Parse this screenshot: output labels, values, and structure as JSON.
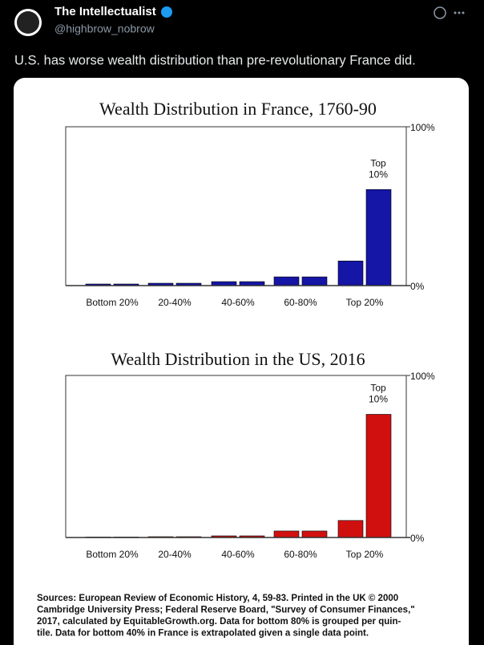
{
  "tweet": {
    "name": "The Intellectualist",
    "handle": "@highbrow_nobrow",
    "text": "U.S. has worse wealth distribution than pre-revolutionary France did."
  },
  "chart_data": [
    {
      "type": "bar",
      "title": "Wealth Distribution in France, 1760-90",
      "categories": [
        "Bottom 20%",
        "20-40%",
        "40-60%",
        "60-80%",
        "Top 20%"
      ],
      "values": [
        [
          1,
          1
        ],
        [
          1.5,
          1.5
        ],
        [
          2.5,
          2.5
        ],
        [
          5.5,
          5.5
        ],
        [
          15.5,
          60.5
        ]
      ],
      "color": "#1515a6",
      "ylim": [
        0,
        100
      ],
      "yticks": [
        {
          "value": 0,
          "label": "0%"
        },
        {
          "value": 100,
          "label": "100%"
        }
      ],
      "annotation": [
        "Top",
        "10%"
      ]
    },
    {
      "type": "bar",
      "title": "Wealth Distribution in the US, 2016",
      "categories": [
        "Bottom 20%",
        "20-40%",
        "40-60%",
        "60-80%",
        "Top 20%"
      ],
      "values": [
        [
          0.3,
          0.3
        ],
        [
          0.5,
          0.5
        ],
        [
          1,
          1
        ],
        [
          4,
          4
        ],
        [
          10.5,
          76
        ]
      ],
      "color": "#d0100f",
      "ylim": [
        0,
        100
      ],
      "yticks": [
        {
          "value": 0,
          "label": "0%"
        },
        {
          "value": 100,
          "label": "100%"
        }
      ],
      "annotation": [
        "Top",
        "10%"
      ]
    }
  ],
  "sources": [
    "Sources: European Review of Economic History, 4, 59-83. Printed in the UK © 2000",
    "Cambridge University Press; Federal Reserve Board, \"Survey of Consumer Finances,\"",
    "2017, calculated by EquitableGrowth.org. Data for bottom 80% is grouped per quin-",
    "tile. Data for bottom 40% in France is extrapolated given a single data point."
  ]
}
